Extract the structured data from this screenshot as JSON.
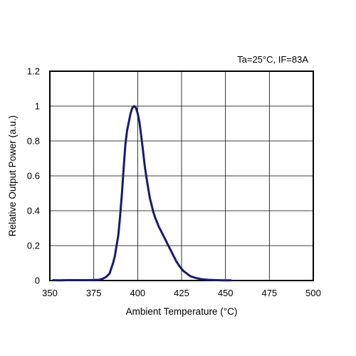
{
  "chart_data": {
    "type": "line",
    "annotation": "Ta=25°C, IF=83A",
    "xlabel": "Ambient Temperature (°C)",
    "ylabel": "Relative Output Power (a.u.)",
    "xlim": [
      350,
      500
    ],
    "ylim": [
      0,
      1.2
    ],
    "x_ticks": [
      350,
      375,
      400,
      425,
      450,
      475,
      500
    ],
    "x_tick_labels": [
      "350",
      "375",
      "400",
      "425",
      "450",
      "475",
      "500"
    ],
    "y_ticks": [
      0,
      0.2,
      0.4,
      0.6,
      0.8,
      1.0,
      1.2
    ],
    "y_tick_labels": [
      "0",
      "0.2",
      "0.4",
      "0.6",
      "0.8",
      "1",
      "1.2"
    ],
    "grid": true,
    "line_color": "#1a1a6e",
    "series": [
      {
        "x": [
          352,
          355,
          360,
          365,
          370,
          375,
          378,
          380,
          382,
          384,
          385,
          386,
          387,
          388,
          389,
          390,
          391,
          392,
          393,
          394,
          395,
          396,
          397,
          398,
          399,
          400,
          401,
          402,
          403,
          404,
          405,
          406,
          407,
          408,
          409,
          410,
          412,
          414,
          416,
          418,
          420,
          422,
          424,
          426,
          428,
          430,
          433,
          436,
          440,
          445,
          450,
          453
        ],
        "y": [
          0.002,
          0.001,
          0.002,
          0.002,
          0.002,
          0.003,
          0.004,
          0.01,
          0.02,
          0.04,
          0.07,
          0.1,
          0.14,
          0.2,
          0.26,
          0.37,
          0.49,
          0.64,
          0.78,
          0.86,
          0.91,
          0.96,
          0.99,
          1.0,
          0.99,
          0.96,
          0.91,
          0.83,
          0.75,
          0.66,
          0.59,
          0.53,
          0.47,
          0.43,
          0.39,
          0.36,
          0.31,
          0.27,
          0.23,
          0.19,
          0.15,
          0.11,
          0.08,
          0.055,
          0.04,
          0.025,
          0.015,
          0.008,
          0.004,
          0.002,
          0.001,
          0.001
        ]
      }
    ]
  }
}
